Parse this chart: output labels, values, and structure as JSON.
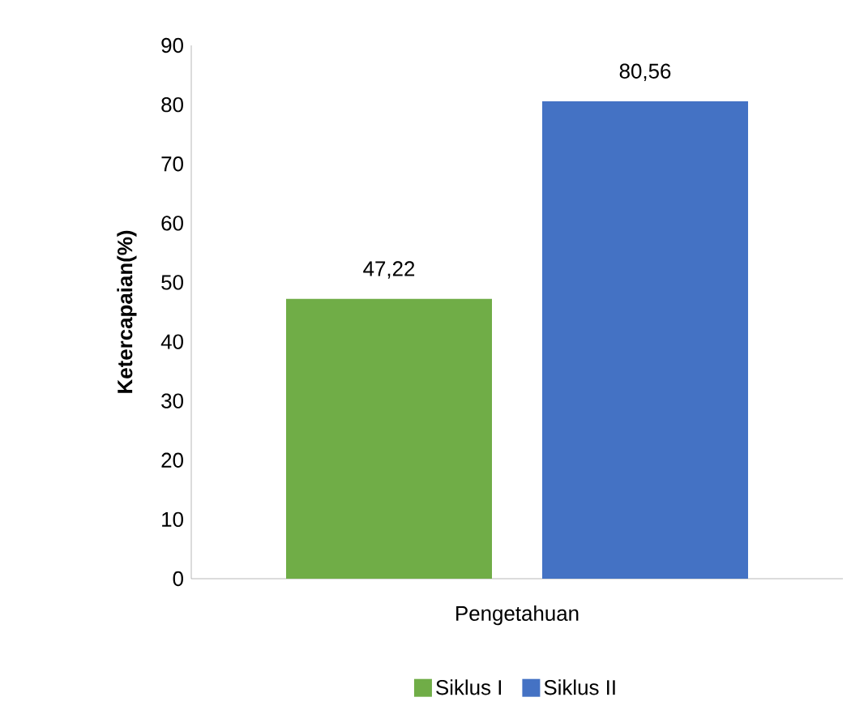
{
  "chart_data": {
    "type": "bar",
    "ylabel": "Ketercapaian(%)",
    "categories": [
      "Pengetahuan"
    ],
    "series": [
      {
        "name": "Siklus I",
        "color": "#70ad47",
        "values": [
          47.22
        ],
        "value_labels": [
          "47,22"
        ]
      },
      {
        "name": "Siklus II",
        "color": "#4472c4",
        "values": [
          80.56
        ],
        "value_labels": [
          "80,56"
        ]
      }
    ],
    "ylim": [
      0,
      90
    ],
    "yticks": [
      0,
      10,
      20,
      30,
      40,
      50,
      60,
      70,
      80,
      90
    ],
    "legend": "bottom",
    "grid": false
  }
}
